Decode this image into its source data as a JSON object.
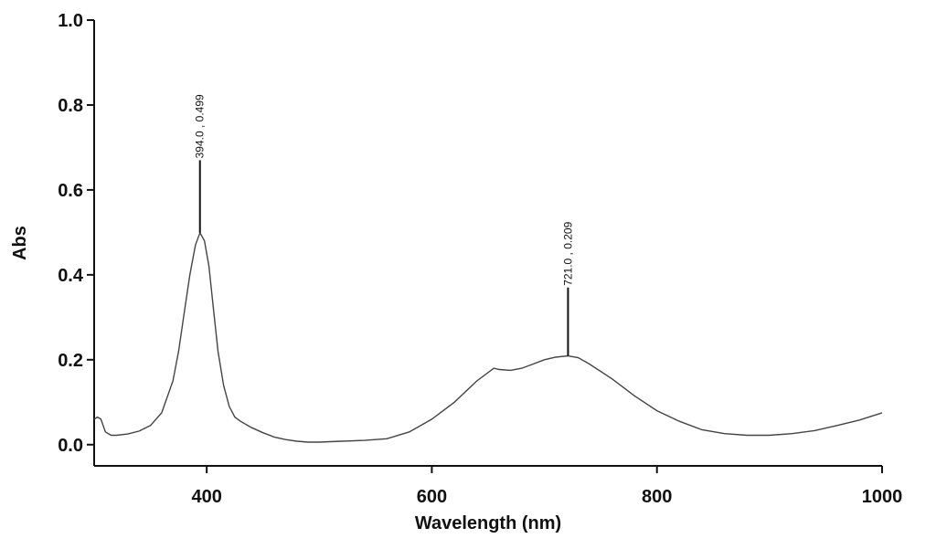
{
  "chart_data": {
    "type": "line",
    "title": "",
    "xlabel": "Wavelength (nm)",
    "ylabel": "Abs",
    "xlim": [
      300,
      1000
    ],
    "ylim": [
      -0.05,
      1.0
    ],
    "xticks": [
      400,
      600,
      800,
      1000
    ],
    "xtick_labels": [
      "400",
      "600",
      "800",
      "1000"
    ],
    "yticks": [
      0.0,
      0.2,
      0.4,
      0.6,
      0.8,
      1.0
    ],
    "ytick_labels": [
      "0.0",
      "0.2",
      "0.4",
      "0.6",
      "0.8",
      "1.0"
    ],
    "grid": false,
    "series": [
      {
        "color": "#444444",
        "x": [
          300,
          303,
          306,
          310,
          315,
          320,
          330,
          340,
          350,
          360,
          370,
          375,
          380,
          385,
          390,
          394,
          398,
          402,
          406,
          410,
          415,
          420,
          425,
          430,
          440,
          450,
          460,
          470,
          480,
          490,
          500,
          520,
          540,
          560,
          580,
          600,
          620,
          640,
          650,
          655,
          660,
          670,
          680,
          690,
          700,
          710,
          721,
          730,
          740,
          760,
          780,
          800,
          820,
          840,
          860,
          880,
          900,
          920,
          940,
          960,
          980,
          1000
        ],
        "y": [
          0.06,
          0.065,
          0.06,
          0.03,
          0.022,
          0.022,
          0.025,
          0.032,
          0.045,
          0.075,
          0.15,
          0.22,
          0.31,
          0.4,
          0.47,
          0.499,
          0.48,
          0.42,
          0.32,
          0.22,
          0.14,
          0.09,
          0.065,
          0.055,
          0.04,
          0.028,
          0.018,
          0.012,
          0.008,
          0.006,
          0.006,
          0.008,
          0.01,
          0.014,
          0.03,
          0.06,
          0.1,
          0.15,
          0.17,
          0.18,
          0.177,
          0.175,
          0.18,
          0.19,
          0.2,
          0.206,
          0.209,
          0.205,
          0.19,
          0.155,
          0.115,
          0.08,
          0.055,
          0.035,
          0.026,
          0.022,
          0.022,
          0.026,
          0.033,
          0.045,
          0.058,
          0.075
        ]
      }
    ],
    "annotations": [
      {
        "x": 394.0,
        "y": 0.499,
        "text": "394.0 , 0.499",
        "line_top": 0.67
      },
      {
        "x": 721.0,
        "y": 0.209,
        "text": "721.0 , 0.209",
        "line_top": 0.37
      }
    ]
  }
}
